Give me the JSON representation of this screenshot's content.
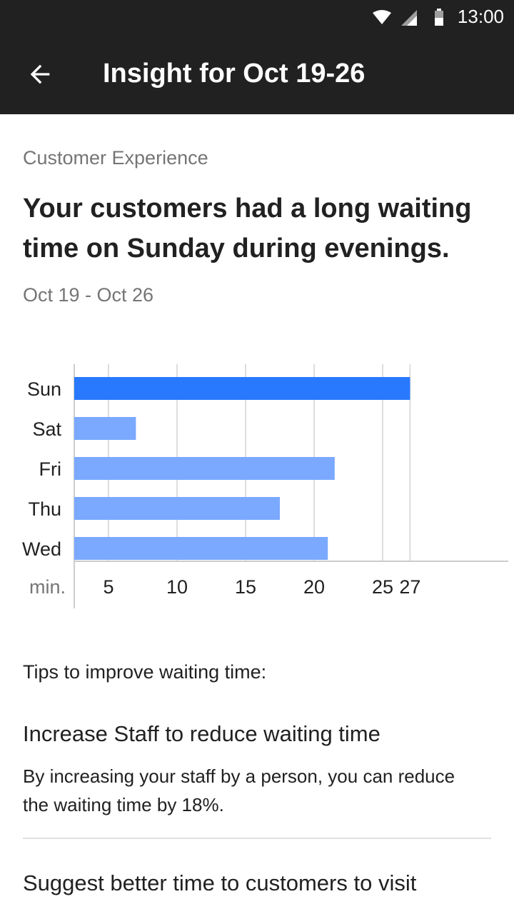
{
  "status_bar": {
    "time": "13:00",
    "icons": [
      "wifi-icon",
      "cellular-signal-icon",
      "battery-icon"
    ]
  },
  "app_bar": {
    "back_icon": "arrow-back-icon",
    "title": "Insight for Oct 19-26"
  },
  "insight": {
    "category": "Customer Experience",
    "headline": "Your customers had a long waiting time on Sunday during evenings.",
    "date_range": "Oct 19 - Oct 26"
  },
  "chart_data": {
    "type": "bar",
    "orientation": "horizontal",
    "categories": [
      "Sun",
      "Sat",
      "Fri",
      "Thu",
      "Wed"
    ],
    "values": [
      27,
      7,
      21.5,
      17.5,
      21
    ],
    "highlight_category": "Sun",
    "xlabel": "min.",
    "xticks": [
      5,
      10,
      15,
      20,
      25,
      27
    ],
    "xlim": [
      2.5,
      27
    ],
    "grid": true,
    "colors": {
      "highlight": "#2979ff",
      "bar": "#7aa9ff",
      "grid": "#dddddd"
    }
  },
  "tips": {
    "heading": "Tips to improve waiting time:",
    "items": [
      {
        "title": "Increase Staff to reduce waiting time",
        "body": "By increasing your staff by a person, you can reduce the waiting time by 18%."
      },
      {
        "title": "Suggest better time to customers to visit",
        "body": ""
      }
    ]
  }
}
